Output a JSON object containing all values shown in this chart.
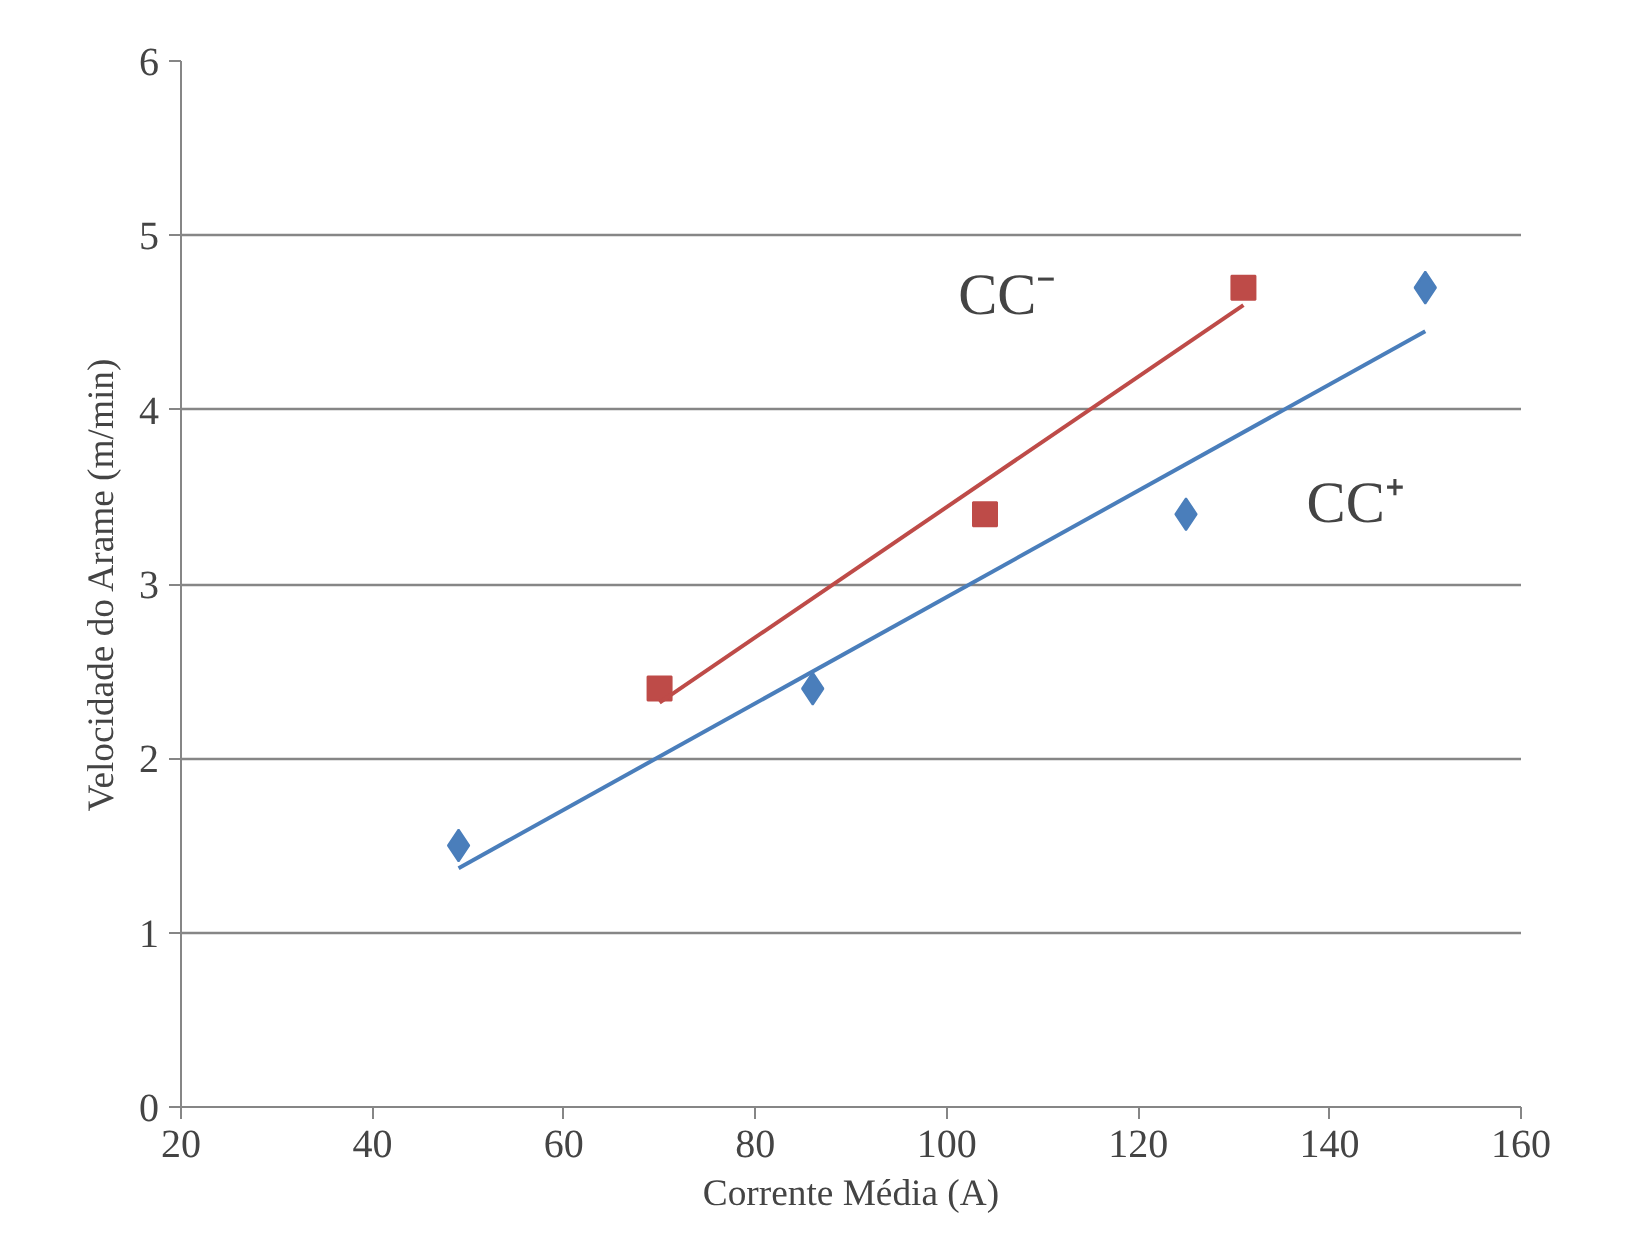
{
  "chart_data": {
    "type": "scatter",
    "xlabel": "Corrente Média (A)",
    "ylabel": "Velocidade do Arame (m/min)",
    "xlim": [
      20,
      160
    ],
    "xticks": [
      20,
      40,
      60,
      80,
      100,
      120,
      140,
      160
    ],
    "ylim": [
      0,
      6
    ],
    "yticks": [
      0,
      1,
      2,
      3,
      4,
      5,
      6
    ],
    "grid": "y",
    "series": [
      {
        "color": "#4a7ebb",
        "marker": "diamond",
        "x": [
          49,
          86,
          125,
          150
        ],
        "values": [
          1.5,
          2.4,
          3.4,
          4.7
        ]
      },
      {
        "color": "#be4b48",
        "marker": "square",
        "x": [
          70,
          104,
          131
        ],
        "values": [
          2.4,
          3.4,
          4.7
        ]
      },
      {
        "type": "line",
        "color": "#4a7ebb",
        "marker": "none",
        "x": [
          49,
          150
        ],
        "values": [
          1.37,
          4.45
        ]
      },
      {
        "type": "line",
        "color": "#be4b48",
        "marker": "none",
        "x": [
          70,
          131
        ],
        "values": [
          2.32,
          4.6
        ]
      }
    ],
    "annotations": [
      "CC⁻",
      "CC⁺"
    ]
  }
}
